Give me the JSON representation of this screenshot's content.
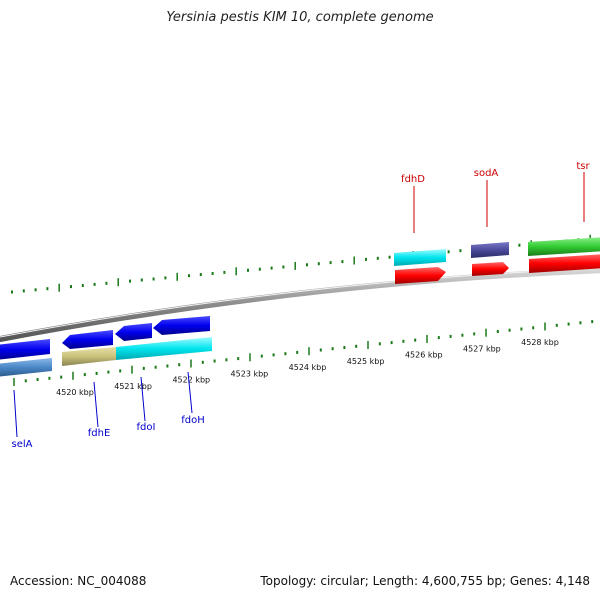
{
  "title": "Yersinia pestis KIM 10, complete genome",
  "accession_text": "Accession: NC_004088",
  "summary_text": "Topology: circular; Length: 4,600,755 bp; Genes: 4,148",
  "scale": {
    "unit": "kbp",
    "tick_labels": [
      "4520 kbp",
      "4521 kbp",
      "4522 kbp",
      "4523 kbp",
      "4524 kbp",
      "4525 kbp",
      "4526 kbp",
      "4527 kbp",
      "4528 kbp"
    ]
  },
  "gene_labels": {
    "forward": [
      "fdhD",
      "sodA",
      "tsr"
    ],
    "reverse": [
      "selA",
      "fdhE",
      "fdoI",
      "fdoH"
    ]
  },
  "colors": {
    "backbone": "#8a8a8a",
    "tick": "#1a7a1a",
    "forward_label": "#cc0000",
    "reverse_label": "#0000cc",
    "cds_forward": "#ff0000",
    "cds_reverse": "#0000ee",
    "cog_cyan": "#00e5ee",
    "cog_slate": "#4a4a9a",
    "cog_green": "#33cc33",
    "cog_steelblue": "#4a86c6",
    "cog_khaki": "#c8c07a"
  }
}
